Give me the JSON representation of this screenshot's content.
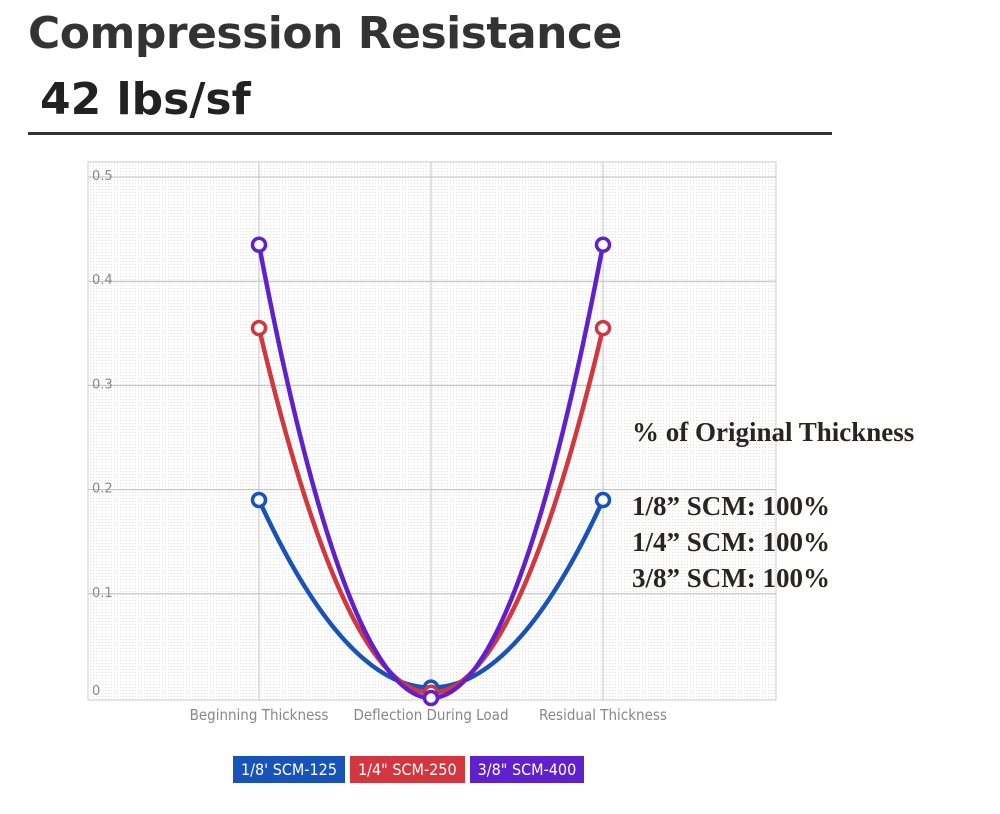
{
  "header": {
    "title": "Compression Resistance",
    "subtitle": "42 lbs/sf"
  },
  "chart_data": {
    "type": "line",
    "categories": [
      "Beginning Thickness",
      "Deflection During Load",
      "Residual Thickness"
    ],
    "yticks": [
      "0",
      "0.1",
      "0.2",
      "0.3",
      "0.4",
      "0.5"
    ],
    "ylim": [
      0,
      0.5
    ],
    "grid": true,
    "legend_position": "bottom",
    "series": [
      {
        "name": "1/8' SCM-125",
        "color": "#1753b8",
        "values": [
          0.19,
          0.01,
          0.19
        ]
      },
      {
        "name": "1/4\" SCM-250",
        "color": "#d2363f",
        "values": [
          0.355,
          0.005,
          0.355
        ]
      },
      {
        "name": "3/8\" SCM-400",
        "color": "#6020cc",
        "values": [
          0.435,
          0.0,
          0.435
        ]
      }
    ]
  },
  "notes": {
    "heading": "% of Original Thickness",
    "lines": [
      "1/8” SCM: 100%",
      "1/4” SCM: 100%",
      "3/8” SCM: 100%"
    ]
  }
}
